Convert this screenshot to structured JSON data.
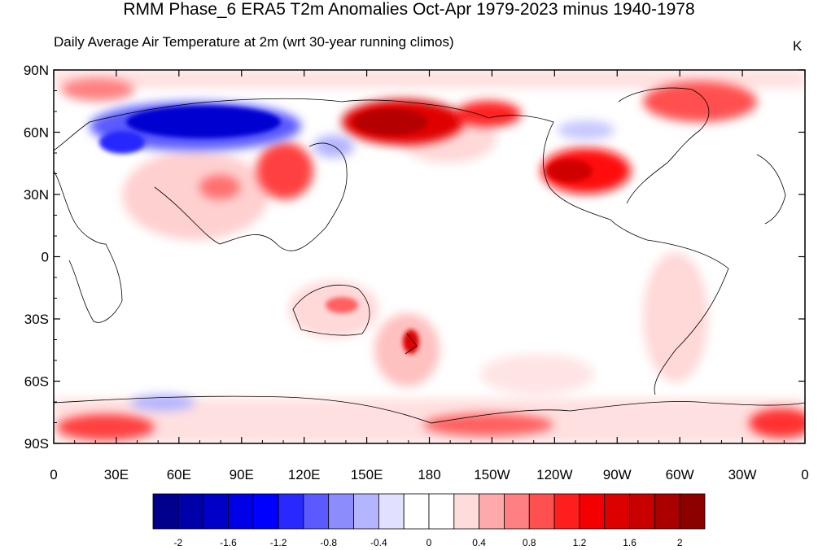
{
  "title": "RMM Phase_6 ERA5 T2m Anomalies Oct-Apr 1979-2023 minus 1940-1978",
  "subtitle": "Daily Average Air Temperature at 2m (wrt 30-year running climos)",
  "units": "K",
  "map": {
    "lat_ticks": [
      "90N",
      "60N",
      "30N",
      "0",
      "30S",
      "60S",
      "90S"
    ],
    "lon_ticks": [
      "0",
      "30E",
      "60E",
      "90E",
      "120E",
      "150E",
      "180",
      "150W",
      "120W",
      "90W",
      "60W",
      "30W",
      "0"
    ]
  },
  "colorbar": {
    "labels": [
      "-2",
      "-1.6",
      "-1.2",
      "-0.8",
      "-0.4",
      "0",
      "0.4",
      "0.8",
      "1.2",
      "1.6",
      "2"
    ],
    "colors": [
      "#00008c",
      "#0000aa",
      "#0000c8",
      "#0000e6",
      "#0000ff",
      "#2828ff",
      "#5a5aff",
      "#8c8cff",
      "#b4b4ff",
      "#e1e1ff",
      "#ffffff",
      "#ffffff",
      "#ffdcdc",
      "#ffaaaa",
      "#ff8080",
      "#ff5050",
      "#ff1e1e",
      "#f50000",
      "#dc0000",
      "#c80000",
      "#aa0000",
      "#8c0000"
    ]
  },
  "colors": {
    "strong_warm": "#b40000",
    "warm": "#ff4040",
    "light_warm": "#ffc8c8",
    "strong_cold": "#0000e6",
    "cold": "#5a5aff",
    "light_cold": "#d2d2ff"
  }
}
